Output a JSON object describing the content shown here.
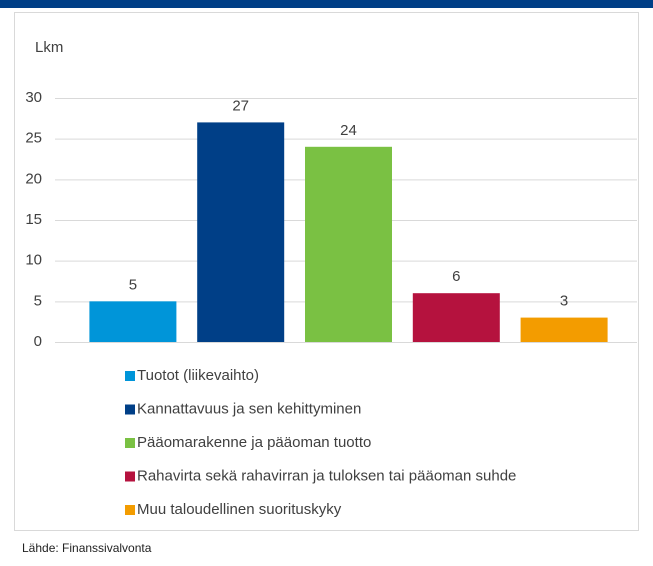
{
  "chart_data": {
    "type": "bar",
    "y_label": "Lkm",
    "categories": [
      "Tuotot (liikevaihto)",
      "Kannattavuus ja sen kehittyminen",
      "Pääomarakenne ja pääoman tuotto",
      "Rahavirta sekä rahavirran ja tuloksen tai pääoman suhde",
      "Muu taloudellinen suorituskyky"
    ],
    "values": [
      5,
      27,
      24,
      6,
      3
    ],
    "colors": [
      "#0095d9",
      "#003f87",
      "#7ac143",
      "#b5123e",
      "#f39c00"
    ],
    "ylim": [
      0,
      30
    ],
    "yticks": [
      0,
      5,
      10,
      15,
      20,
      25,
      30
    ],
    "grid": true,
    "source": "Lähde: Finanssivalvonta"
  }
}
